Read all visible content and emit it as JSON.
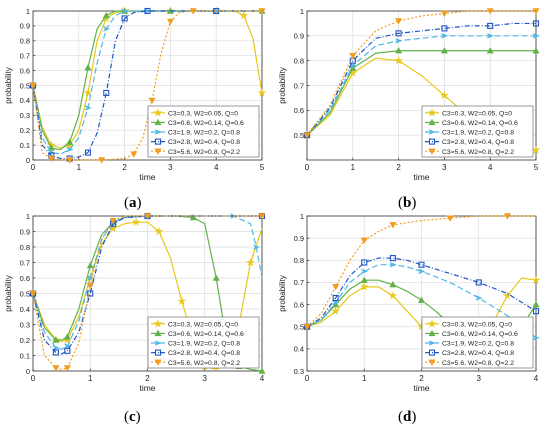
{
  "series_styles": [
    {
      "name": "C3=0.3, W2=0.05, Q=0",
      "color": "#e8c81a",
      "marker": "star",
      "dash": ""
    },
    {
      "name": "C3=0.6, W2=0.14, Q=0.6",
      "color": "#63b14a",
      "marker": "triangle",
      "dash": ""
    },
    {
      "name": "C3=1.9, W2=0.2, Q=0.8",
      "color": "#4fb7e6",
      "marker": "arrowR",
      "dash": "6 3"
    },
    {
      "name": "C3=2.8, W2=0.4, Q=0.8",
      "color": "#1f55c8",
      "marker": "square",
      "dash": "5 2 1 2"
    },
    {
      "name": "C3=5.6, W2=0.8, Q=2.2",
      "color": "#f39c1c",
      "marker": "triangleDown",
      "dash": "2 2"
    }
  ],
  "panel_labels": [
    {
      "prefix": "(",
      "letter": "a",
      "suffix": ")"
    },
    {
      "prefix": "(",
      "letter": "b",
      "suffix": ")"
    },
    {
      "prefix": "(",
      "letter": "c",
      "suffix": ")"
    },
    {
      "prefix": "(",
      "letter": "d",
      "suffix": ")"
    }
  ],
  "chart_data": [
    {
      "type": "line",
      "title": "",
      "xlabel": "time",
      "ylabel": "probability",
      "xlim": [
        0,
        5
      ],
      "ylim": [
        0,
        1
      ],
      "grid": true,
      "legend": "bottom-right",
      "xticks": [
        0,
        1,
        2,
        3,
        4,
        5
      ],
      "yticks": [
        0,
        0.1,
        0.2,
        0.3,
        0.4,
        0.5,
        0.6,
        0.7,
        0.8,
        0.9,
        1
      ],
      "series": [
        {
          "name": "C3=0.3, W2=0.05, Q=0",
          "x": [
            0,
            0.2,
            0.4,
            0.6,
            0.8,
            1.0,
            1.2,
            1.4,
            1.6,
            1.8,
            2.0,
            2.5,
            3.0,
            3.5,
            4.0,
            4.4,
            4.6,
            4.8,
            5.0
          ],
          "y": [
            0.5,
            0.22,
            0.1,
            0.08,
            0.1,
            0.2,
            0.45,
            0.8,
            0.95,
            0.99,
            1,
            1,
            1,
            1,
            1,
            1,
            0.97,
            0.82,
            0.45
          ]
        },
        {
          "name": "C3=0.6, W2=0.14, Q=0.6",
          "x": [
            0,
            0.2,
            0.4,
            0.6,
            0.8,
            1.0,
            1.2,
            1.4,
            1.6,
            1.8,
            2.0,
            2.5,
            3.0,
            4.0,
            5.0
          ],
          "y": [
            0.5,
            0.2,
            0.08,
            0.07,
            0.12,
            0.3,
            0.62,
            0.88,
            0.97,
            1,
            1,
            1,
            1,
            1,
            1
          ]
        },
        {
          "name": "C3=1.9, W2=0.2, Q=0.8",
          "x": [
            0,
            0.2,
            0.4,
            0.6,
            0.8,
            1.0,
            1.2,
            1.4,
            1.6,
            1.8,
            2.0,
            2.2,
            2.5,
            3.0,
            4.0,
            5.0
          ],
          "y": [
            0.5,
            0.15,
            0.05,
            0.04,
            0.07,
            0.15,
            0.35,
            0.65,
            0.88,
            0.97,
            1,
            1,
            1,
            1,
            1,
            1
          ]
        },
        {
          "name": "C3=2.8, W2=0.4, Q=0.8",
          "x": [
            0,
            0.2,
            0.4,
            0.6,
            0.8,
            1.0,
            1.2,
            1.4,
            1.6,
            1.8,
            2.0,
            2.2,
            2.5,
            3.0,
            4.0,
            5.0
          ],
          "y": [
            0.5,
            0.1,
            0.03,
            0.01,
            0.01,
            0.02,
            0.05,
            0.18,
            0.45,
            0.8,
            0.95,
            0.99,
            1,
            1,
            1,
            1
          ]
        },
        {
          "name": "C3=5.6, W2=0.8, Q=2.2",
          "x": [
            0,
            0.2,
            0.4,
            0.6,
            0.8,
            1.0,
            1.5,
            2.0,
            2.2,
            2.4,
            2.6,
            2.8,
            3.0,
            3.2,
            3.5,
            4.0,
            5.0
          ],
          "y": [
            0.5,
            0.05,
            0.01,
            0,
            0,
            0,
            0,
            0.01,
            0.04,
            0.15,
            0.4,
            0.72,
            0.93,
            0.99,
            1,
            1,
            1
          ]
        }
      ]
    },
    {
      "type": "line",
      "title": "",
      "xlabel": "time",
      "ylabel": "probability",
      "xlim": [
        0,
        5
      ],
      "ylim": [
        0.4,
        1
      ],
      "grid": true,
      "legend": "bottom-right",
      "xticks": [
        0,
        1,
        2,
        3,
        4,
        5
      ],
      "yticks": [
        0.5,
        0.6,
        0.7,
        0.8,
        0.9,
        1
      ],
      "series": [
        {
          "name": "C3=0.3, W2=0.05, Q=0",
          "x": [
            0,
            0.5,
            1.0,
            1.5,
            2.0,
            2.5,
            3.0,
            3.5,
            4.0,
            4.5,
            5.0
          ],
          "y": [
            0.5,
            0.58,
            0.75,
            0.81,
            0.8,
            0.74,
            0.66,
            0.58,
            0.5,
            0.46,
            0.44
          ]
        },
        {
          "name": "C3=0.6, W2=0.14, Q=0.6",
          "x": [
            0,
            0.5,
            1.0,
            1.5,
            2.0,
            2.5,
            3.0,
            3.5,
            4.0,
            4.5,
            5.0
          ],
          "y": [
            0.5,
            0.59,
            0.77,
            0.83,
            0.84,
            0.84,
            0.84,
            0.84,
            0.84,
            0.84,
            0.84
          ]
        },
        {
          "name": "C3=1.9, W2=0.2, Q=0.8",
          "x": [
            0,
            0.5,
            1.0,
            1.5,
            2.0,
            2.5,
            3.0,
            3.5,
            4.0,
            4.5,
            5.0
          ],
          "y": [
            0.5,
            0.6,
            0.78,
            0.86,
            0.88,
            0.89,
            0.9,
            0.9,
            0.9,
            0.9,
            0.9
          ]
        },
        {
          "name": "C3=2.8, W2=0.4, Q=0.8",
          "x": [
            0,
            0.5,
            1.0,
            1.5,
            2.0,
            2.5,
            3.0,
            3.5,
            4.0,
            4.5,
            5.0
          ],
          "y": [
            0.5,
            0.61,
            0.8,
            0.89,
            0.91,
            0.92,
            0.93,
            0.94,
            0.94,
            0.95,
            0.95
          ]
        },
        {
          "name": "C3=5.6, W2=0.8, Q=2.2",
          "x": [
            0,
            0.5,
            1.0,
            1.5,
            2.0,
            2.5,
            3.0,
            3.5,
            4.0,
            4.5,
            5.0
          ],
          "y": [
            0.5,
            0.62,
            0.82,
            0.92,
            0.96,
            0.98,
            0.99,
            1,
            1,
            1,
            1
          ]
        }
      ]
    },
    {
      "type": "line",
      "title": "",
      "xlabel": "time",
      "ylabel": "probability",
      "xlim": [
        0,
        4
      ],
      "ylim": [
        0,
        1
      ],
      "grid": true,
      "legend": "bottom-right",
      "xticks": [
        0,
        1,
        2,
        3,
        4
      ],
      "yticks": [
        0,
        0.1,
        0.2,
        0.3,
        0.4,
        0.5,
        0.6,
        0.7,
        0.8,
        0.9,
        1
      ],
      "series": [
        {
          "name": "C3=0.3, W2=0.05, Q=0",
          "x": [
            0,
            0.2,
            0.4,
            0.5,
            0.6,
            0.8,
            1.0,
            1.2,
            1.4,
            1.6,
            1.8,
            2.0,
            2.2,
            2.4,
            2.6,
            2.8,
            3.0,
            3.2,
            3.4,
            3.6,
            3.8,
            4.0
          ],
          "y": [
            0.5,
            0.3,
            0.2,
            0.19,
            0.2,
            0.35,
            0.6,
            0.82,
            0.92,
            0.95,
            0.96,
            0.96,
            0.9,
            0.73,
            0.45,
            0.2,
            0.03,
            0.01,
            0.05,
            0.3,
            0.7,
            0.92
          ]
        },
        {
          "name": "C3=0.6, W2=0.14, Q=0.6",
          "x": [
            0,
            0.2,
            0.4,
            0.5,
            0.6,
            0.8,
            1.0,
            1.2,
            1.4,
            1.6,
            2.0,
            2.5,
            2.8,
            3.0,
            3.2,
            3.4,
            3.6,
            3.8,
            4.0
          ],
          "y": [
            0.5,
            0.28,
            0.2,
            0.2,
            0.22,
            0.4,
            0.68,
            0.88,
            0.96,
            0.99,
            1,
            1,
            0.99,
            0.95,
            0.6,
            0.15,
            0.03,
            0.01,
            0
          ]
        },
        {
          "name": "C3=1.9, W2=0.2, Q=0.8",
          "x": [
            0,
            0.2,
            0.4,
            0.5,
            0.6,
            0.8,
            1.0,
            1.2,
            1.4,
            1.6,
            2.0,
            3.0,
            3.5,
            3.8,
            3.9,
            4.0
          ],
          "y": [
            0.5,
            0.25,
            0.15,
            0.14,
            0.16,
            0.32,
            0.6,
            0.85,
            0.96,
            0.99,
            1,
            1,
            1,
            0.95,
            0.8,
            0.6
          ]
        },
        {
          "name": "C3=2.8, W2=0.4, Q=0.8",
          "x": [
            0,
            0.2,
            0.4,
            0.5,
            0.6,
            0.8,
            1.0,
            1.2,
            1.4,
            1.6,
            2.0,
            3.0,
            4.0
          ],
          "y": [
            0.5,
            0.2,
            0.12,
            0.11,
            0.13,
            0.25,
            0.5,
            0.8,
            0.95,
            0.99,
            1,
            1,
            1
          ]
        },
        {
          "name": "C3=5.6, W2=0.8, Q=2.2",
          "x": [
            0,
            0.2,
            0.4,
            0.5,
            0.6,
            0.8,
            1.0,
            1.2,
            1.4,
            1.6,
            2.0,
            3.0,
            4.0
          ],
          "y": [
            0.5,
            0.1,
            0.02,
            0.01,
            0.02,
            0.18,
            0.55,
            0.85,
            0.97,
            1,
            1,
            1,
            1
          ]
        }
      ]
    },
    {
      "type": "line",
      "title": "",
      "xlabel": "time",
      "ylabel": "probability",
      "xlim": [
        0,
        4
      ],
      "ylim": [
        0.3,
        1
      ],
      "grid": true,
      "legend": "bottom-right",
      "xticks": [
        0,
        1,
        2,
        3,
        4
      ],
      "yticks": [
        0.3,
        0.4,
        0.5,
        0.6,
        0.7,
        0.8,
        0.9,
        1
      ],
      "series": [
        {
          "name": "C3=0.3, W2=0.05, Q=0",
          "x": [
            0,
            0.25,
            0.5,
            0.75,
            1.0,
            1.25,
            1.5,
            1.75,
            2.0,
            2.25,
            2.5,
            2.75,
            3.0,
            3.25,
            3.5,
            3.75,
            4.0
          ],
          "y": [
            0.5,
            0.52,
            0.57,
            0.64,
            0.68,
            0.68,
            0.64,
            0.57,
            0.5,
            0.43,
            0.39,
            0.38,
            0.42,
            0.52,
            0.64,
            0.72,
            0.71
          ]
        },
        {
          "name": "C3=0.6, W2=0.14, Q=0.6",
          "x": [
            0,
            0.25,
            0.5,
            0.75,
            1.0,
            1.25,
            1.5,
            1.75,
            2.0,
            2.25,
            2.5,
            2.75,
            3.0,
            3.25,
            3.5,
            3.75,
            4.0
          ],
          "y": [
            0.5,
            0.53,
            0.6,
            0.67,
            0.71,
            0.71,
            0.69,
            0.66,
            0.62,
            0.57,
            0.51,
            0.46,
            0.42,
            0.4,
            0.42,
            0.5,
            0.6
          ]
        },
        {
          "name": "C3=1.9, W2=0.2, Q=0.8",
          "x": [
            0,
            0.25,
            0.5,
            0.75,
            1.0,
            1.25,
            1.5,
            1.75,
            2.0,
            2.5,
            3.0,
            3.5,
            4.0
          ],
          "y": [
            0.5,
            0.53,
            0.61,
            0.7,
            0.75,
            0.78,
            0.78,
            0.77,
            0.75,
            0.7,
            0.63,
            0.55,
            0.45
          ]
        },
        {
          "name": "C3=2.8, W2=0.4, Q=0.8",
          "x": [
            0,
            0.25,
            0.5,
            0.75,
            1.0,
            1.25,
            1.5,
            1.75,
            2.0,
            2.5,
            3.0,
            3.5,
            4.0
          ],
          "y": [
            0.5,
            0.54,
            0.63,
            0.73,
            0.79,
            0.81,
            0.81,
            0.8,
            0.78,
            0.74,
            0.7,
            0.65,
            0.57
          ]
        },
        {
          "name": "C3=5.6, W2=0.8, Q=2.2",
          "x": [
            0,
            0.25,
            0.5,
            0.75,
            1.0,
            1.25,
            1.5,
            2.0,
            2.5,
            3.0,
            3.5,
            4.0
          ],
          "y": [
            0.5,
            0.56,
            0.68,
            0.8,
            0.89,
            0.93,
            0.96,
            0.98,
            0.99,
            1,
            1,
            1
          ]
        }
      ]
    }
  ]
}
